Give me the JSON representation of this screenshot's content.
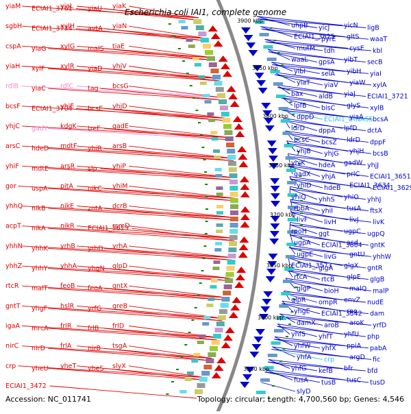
{
  "title": "Escherichia coli IAI1, complete genome",
  "accession": "Accession: NC_011741",
  "summary": "Topology: circular; Length: 4,700,560 bp; Genes: 4,546",
  "colors": {
    "forward": "#dd0000",
    "reverse": "#0000cc",
    "rna_forward": "#ee88cc",
    "rna_reverse": "#33bbee",
    "backbone": "#888888",
    "tick": "#008800"
  },
  "kbp_labels": [
    "3900 kbp",
    "3850 kbp",
    "3800 kbp",
    "3750 kbp",
    "3700 kbp",
    "3650 kbp",
    "3600 kbp",
    "3550 kbp"
  ],
  "left_labels": [
    {
      "t": "yiaM",
      "c": "f"
    },
    {
      "t": "ECIAI1_3761",
      "c": "f"
    },
    {
      "t": "yiaL",
      "c": "f"
    },
    {
      "t": "yiaU",
      "c": "f"
    },
    {
      "t": "yiaK",
      "c": "f"
    },
    {
      "t": "sgbH",
      "c": "f"
    },
    {
      "t": "ECIAI1_3734",
      "c": "f"
    },
    {
      "t": "xylH",
      "c": "f"
    },
    {
      "t": "avtA",
      "c": "f"
    },
    {
      "t": "yiaN",
      "c": "f"
    },
    {
      "t": "cspA",
      "c": "f"
    },
    {
      "t": "yiaG",
      "c": "f"
    },
    {
      "t": "xylG",
      "c": "f"
    },
    {
      "t": "malS",
      "c": "f"
    },
    {
      "t": "tiaE",
      "c": "f"
    },
    {
      "t": "yiaH",
      "c": "f"
    },
    {
      "t": "xylF",
      "c": "f"
    },
    {
      "t": "xylR",
      "c": "f"
    },
    {
      "t": "yiaD",
      "c": "f"
    },
    {
      "t": "yhjV",
      "c": "f"
    },
    {
      "t": "rdlB",
      "c": "rf"
    },
    {
      "t": "yiaC",
      "c": "f"
    },
    {
      "t": "rdlC",
      "c": "rf"
    },
    {
      "t": "tag",
      "c": "f"
    },
    {
      "t": "bcsG",
      "c": "f"
    },
    {
      "t": "bcsF",
      "c": "f"
    },
    {
      "t": "ECIAI1_3704",
      "c": "f"
    },
    {
      "t": "yhjE",
      "c": "f"
    },
    {
      "t": "bcsE",
      "c": "f"
    },
    {
      "t": "yhjD",
      "c": "f"
    },
    {
      "t": "yhjC",
      "c": "f"
    },
    {
      "t": "gadY",
      "c": "rf"
    },
    {
      "t": "kdgK",
      "c": "f"
    },
    {
      "t": "treF",
      "c": "f"
    },
    {
      "t": "gadE",
      "c": "f"
    },
    {
      "t": "arsC",
      "c": "f"
    },
    {
      "t": "hdeD",
      "c": "f"
    },
    {
      "t": "mdtF",
      "c": "f"
    },
    {
      "t": "yhiR",
      "c": "f"
    },
    {
      "t": "arsB",
      "c": "f"
    },
    {
      "t": "yhiF",
      "c": "f"
    },
    {
      "t": "mdtE",
      "c": "f"
    },
    {
      "t": "arsR",
      "c": "f"
    },
    {
      "t": "slp",
      "c": "f"
    },
    {
      "t": "yhiP",
      "c": "f"
    },
    {
      "t": "gor",
      "c": "f"
    },
    {
      "t": "uspA",
      "c": "f"
    },
    {
      "t": "pitA",
      "c": "f"
    },
    {
      "t": "nikC",
      "c": "f"
    },
    {
      "t": "yhiM",
      "c": "f"
    },
    {
      "t": "yhhQ",
      "c": "f"
    },
    {
      "t": "nikB",
      "c": "f"
    },
    {
      "t": "nikE",
      "c": "f"
    },
    {
      "t": "zntA",
      "c": "f"
    },
    {
      "t": "dcrB",
      "c": "f"
    },
    {
      "t": "acpT",
      "c": "f"
    },
    {
      "t": "nikA",
      "c": "f"
    },
    {
      "t": "nikR",
      "c": "f"
    },
    {
      "t": "ECIAI1_3613",
      "c": "f"
    },
    {
      "t": "rsmD",
      "c": "f"
    },
    {
      "t": "yhhN",
      "c": "f"
    },
    {
      "t": "yhhK",
      "c": "f"
    },
    {
      "t": "yrhB",
      "c": "f"
    },
    {
      "t": "yrhD",
      "c": "f"
    },
    {
      "t": "yrhA",
      "c": "f"
    },
    {
      "t": "yhhZ",
      "c": "f"
    },
    {
      "t": "yhhY",
      "c": "f"
    },
    {
      "t": "yhhA",
      "c": "f"
    },
    {
      "t": "yhgN",
      "c": "f"
    },
    {
      "t": "glpD",
      "c": "f"
    },
    {
      "t": "rtcR",
      "c": "f"
    },
    {
      "t": "malT",
      "c": "f"
    },
    {
      "t": "feoB",
      "c": "f"
    },
    {
      "t": "feoA",
      "c": "f"
    },
    {
      "t": "gntX",
      "c": "f"
    },
    {
      "t": "gntT",
      "c": "f"
    },
    {
      "t": "yhgF",
      "c": "f"
    },
    {
      "t": "hslR",
      "c": "f"
    },
    {
      "t": "yrfG",
      "c": "f"
    },
    {
      "t": "greB",
      "c": "f"
    },
    {
      "t": "igaA",
      "c": "f"
    },
    {
      "t": "mrcA",
      "c": "f"
    },
    {
      "t": "frlR",
      "c": "f"
    },
    {
      "t": "frlB",
      "c": "f"
    },
    {
      "t": "frlD",
      "c": "f"
    },
    {
      "t": "nirC",
      "c": "f"
    },
    {
      "t": "nirD",
      "c": "f"
    },
    {
      "t": "frlA",
      "c": "f"
    },
    {
      "t": "nirB",
      "c": "f"
    },
    {
      "t": "tsgA",
      "c": "f"
    },
    {
      "t": "crp",
      "c": "f"
    },
    {
      "t": "yheU",
      "c": "f"
    },
    {
      "t": "yheT",
      "c": "f"
    },
    {
      "t": "yheS",
      "c": "f"
    },
    {
      "t": "slyX",
      "c": "f"
    },
    {
      "t": "ECIAI1_3472",
      "c": "f"
    }
  ],
  "right_labels": [
    {
      "t": "uhpB",
      "c": "r"
    },
    {
      "t": "yicJ",
      "c": "r"
    },
    {
      "t": "yicN",
      "c": "r"
    },
    {
      "t": "ligB",
      "c": "r"
    },
    {
      "t": "ECIAI1_3825",
      "c": "r"
    },
    {
      "t": "pyrE",
      "c": "r"
    },
    {
      "t": "gltS",
      "c": "r"
    },
    {
      "t": "waaT",
      "c": "r"
    },
    {
      "t": "mutM",
      "c": "r"
    },
    {
      "t": "tdh",
      "c": "r"
    },
    {
      "t": "cysE",
      "c": "r"
    },
    {
      "t": "kbl",
      "c": "r"
    },
    {
      "t": "waaL",
      "c": "r"
    },
    {
      "t": "gpsA",
      "c": "r"
    },
    {
      "t": "yibT",
      "c": "r"
    },
    {
      "t": "secB",
      "c": "r"
    },
    {
      "t": "yibI",
      "c": "r"
    },
    {
      "t": "selA",
      "c": "r"
    },
    {
      "t": "yibH",
      "c": "r"
    },
    {
      "t": "yiaI",
      "c": "r"
    },
    {
      "t": "yiaT",
      "c": "r"
    },
    {
      "t": "yiaV",
      "c": "r"
    },
    {
      "t": "yiaW",
      "c": "r"
    },
    {
      "t": "xylA",
      "c": "r"
    },
    {
      "t": "bax",
      "c": "r"
    },
    {
      "t": "aldB",
      "c": "r"
    },
    {
      "t": "yiaJ",
      "c": "r"
    },
    {
      "t": "ECIAI1_3721",
      "c": "r"
    },
    {
      "t": "lpfB",
      "c": "r"
    },
    {
      "t": "bisC",
      "c": "r"
    },
    {
      "t": "glyS",
      "c": "r"
    },
    {
      "t": "xylB",
      "c": "r"
    },
    {
      "t": "dppD",
      "c": "r"
    },
    {
      "t": "ECIAI1_tRNA55",
      "c": "rr"
    },
    {
      "t": "yiaA",
      "c": "r"
    },
    {
      "t": "bcsA",
      "c": "r"
    },
    {
      "t": "ldrD",
      "c": "r"
    },
    {
      "t": "dppA",
      "c": "r"
    },
    {
      "t": "lpfD",
      "c": "r"
    },
    {
      "t": "dctA",
      "c": "r"
    },
    {
      "t": "bcsC",
      "c": "r"
    },
    {
      "t": "bcsZ",
      "c": "r"
    },
    {
      "t": "ldrD",
      "c": "r"
    },
    {
      "t": "dppF",
      "c": "r"
    },
    {
      "t": "yhjB",
      "c": "r"
    },
    {
      "t": "yhjG",
      "c": "r"
    },
    {
      "t": "yhjH",
      "c": "r"
    },
    {
      "t": "bcsB",
      "c": "r"
    },
    {
      "t": "yhjK",
      "c": "r"
    },
    {
      "t": "hdeA",
      "c": "r"
    },
    {
      "t": "gadW",
      "c": "r"
    },
    {
      "t": "yhjJ",
      "c": "r"
    },
    {
      "t": "gadX",
      "c": "r"
    },
    {
      "t": "yhjA",
      "c": "r"
    },
    {
      "t": "prlC",
      "c": "r"
    },
    {
      "t": "ECIAI1_3651",
      "c": "r"
    },
    {
      "t": "yhiD",
      "c": "r"
    },
    {
      "t": "hdeB",
      "c": "r"
    },
    {
      "t": "ECIAI1_3634",
      "c": "r"
    },
    {
      "t": "ECIAI1_3629",
      "c": "r"
    },
    {
      "t": "yhiQ",
      "c": "r"
    },
    {
      "t": "yhhS",
      "c": "r"
    },
    {
      "t": "yhiO",
      "c": "r"
    },
    {
      "t": "yhhJ",
      "c": "r"
    },
    {
      "t": "rbbA",
      "c": "r"
    },
    {
      "t": "yhiI",
      "c": "r"
    },
    {
      "t": "tusA",
      "c": "r"
    },
    {
      "t": "ftsX",
      "c": "r"
    },
    {
      "t": "livF",
      "c": "r"
    },
    {
      "t": "livH",
      "c": "r"
    },
    {
      "t": "livJ",
      "c": "r"
    },
    {
      "t": "livK",
      "c": "r"
    },
    {
      "t": "rpoH",
      "c": "r"
    },
    {
      "t": "ggt",
      "c": "r"
    },
    {
      "t": "ugpC",
      "c": "r"
    },
    {
      "t": "ugpQ",
      "c": "r"
    },
    {
      "t": "ugpA",
      "c": "r"
    },
    {
      "t": "ECIAI1_3604",
      "c": "r"
    },
    {
      "t": "asd",
      "c": "r"
    },
    {
      "t": "gntK",
      "c": "r"
    },
    {
      "t": "ugpE",
      "c": "r"
    },
    {
      "t": "livG",
      "c": "r"
    },
    {
      "t": "gntU",
      "c": "r"
    },
    {
      "t": "yhhW",
      "c": "r"
    },
    {
      "t": "ECIAI1_3573",
      "c": "r"
    },
    {
      "t": "glgA",
      "c": "r"
    },
    {
      "t": "glgX",
      "c": "r"
    },
    {
      "t": "gntR",
      "c": "r"
    },
    {
      "t": "rtcA",
      "c": "r"
    },
    {
      "t": "rtcB",
      "c": "r"
    },
    {
      "t": "glpE",
      "c": "r"
    },
    {
      "t": "glgB",
      "c": "r"
    },
    {
      "t": "glgP",
      "c": "r"
    },
    {
      "t": "bioH",
      "c": "r"
    },
    {
      "t": "malQ",
      "c": "r"
    },
    {
      "t": "malP",
      "c": "r"
    },
    {
      "t": "glpR",
      "c": "r"
    },
    {
      "t": "ompR",
      "c": "r"
    },
    {
      "t": "envZ",
      "c": "r"
    },
    {
      "t": "nudE",
      "c": "r"
    },
    {
      "t": "yhgE",
      "c": "r"
    },
    {
      "t": "ECIAI1_3542",
      "c": "r"
    },
    {
      "t": "rpe",
      "c": "r"
    },
    {
      "t": "dam",
      "c": "r"
    },
    {
      "t": "damX",
      "c": "r"
    },
    {
      "t": "aroB",
      "c": "r"
    },
    {
      "t": "aroK",
      "c": "r"
    },
    {
      "t": "yrfD",
      "c": "r"
    },
    {
      "t": "yhfS",
      "c": "r"
    },
    {
      "t": "yhfT",
      "c": "r"
    },
    {
      "t": "yhfU",
      "c": "r"
    },
    {
      "t": "php",
      "c": "r"
    },
    {
      "t": "yhfW",
      "c": "r"
    },
    {
      "t": "yhfX",
      "c": "r"
    },
    {
      "t": "ppiA",
      "c": "r"
    },
    {
      "t": "pabA",
      "c": "r"
    },
    {
      "t": "yhfA",
      "c": "r"
    },
    {
      "t": "crp",
      "c": "rr"
    },
    {
      "t": "argD",
      "c": "r"
    },
    {
      "t": "fic",
      "c": "r"
    },
    {
      "t": "yhfG",
      "c": "r"
    },
    {
      "t": "kefB",
      "c": "r"
    },
    {
      "t": "bfr",
      "c": "r"
    },
    {
      "t": "bfd",
      "c": "r"
    },
    {
      "t": "fusA",
      "c": "r"
    },
    {
      "t": "tusB",
      "c": "r"
    },
    {
      "t": "tusC",
      "c": "r"
    },
    {
      "t": "tusD",
      "c": "r"
    },
    {
      "t": "slyD",
      "c": "r"
    }
  ]
}
